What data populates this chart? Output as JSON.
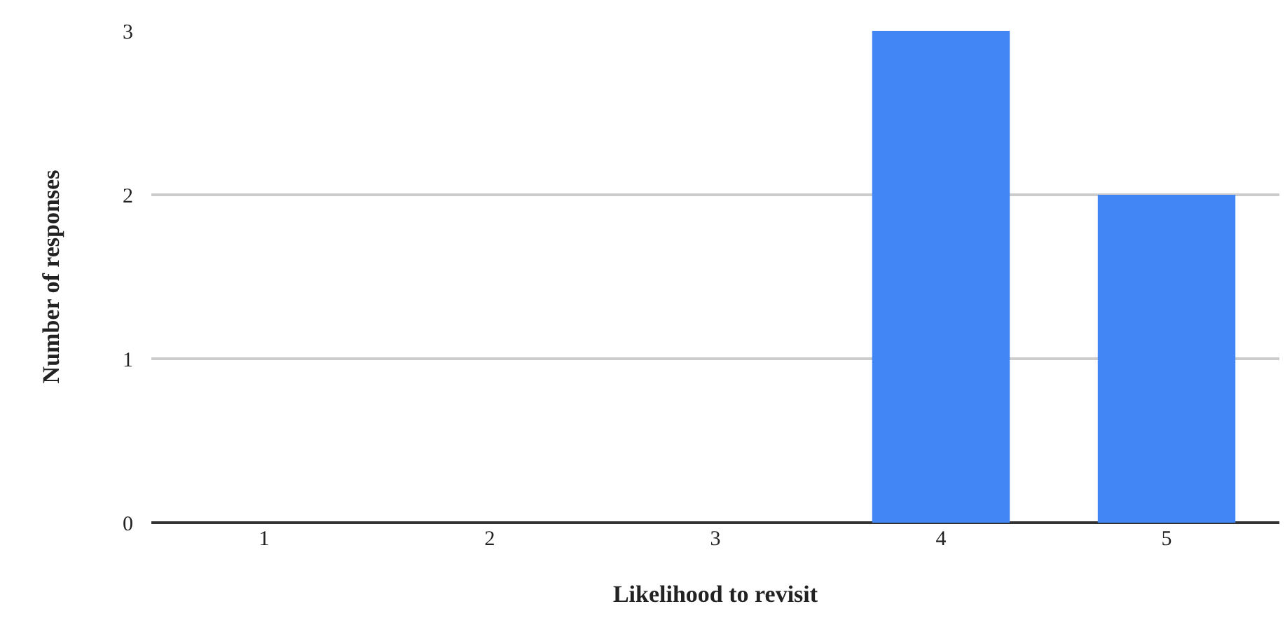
{
  "chart_data": {
    "type": "bar",
    "xlabel": "Likelihood to revisit",
    "ylabel": "Number of responses",
    "categories": [
      "1",
      "2",
      "3",
      "4",
      "5"
    ],
    "values": [
      0,
      0,
      0,
      3,
      2
    ],
    "color": "#4285f4",
    "ylim": [
      0,
      3
    ],
    "yticks": [
      0,
      1,
      2,
      3
    ],
    "grid": "y"
  }
}
